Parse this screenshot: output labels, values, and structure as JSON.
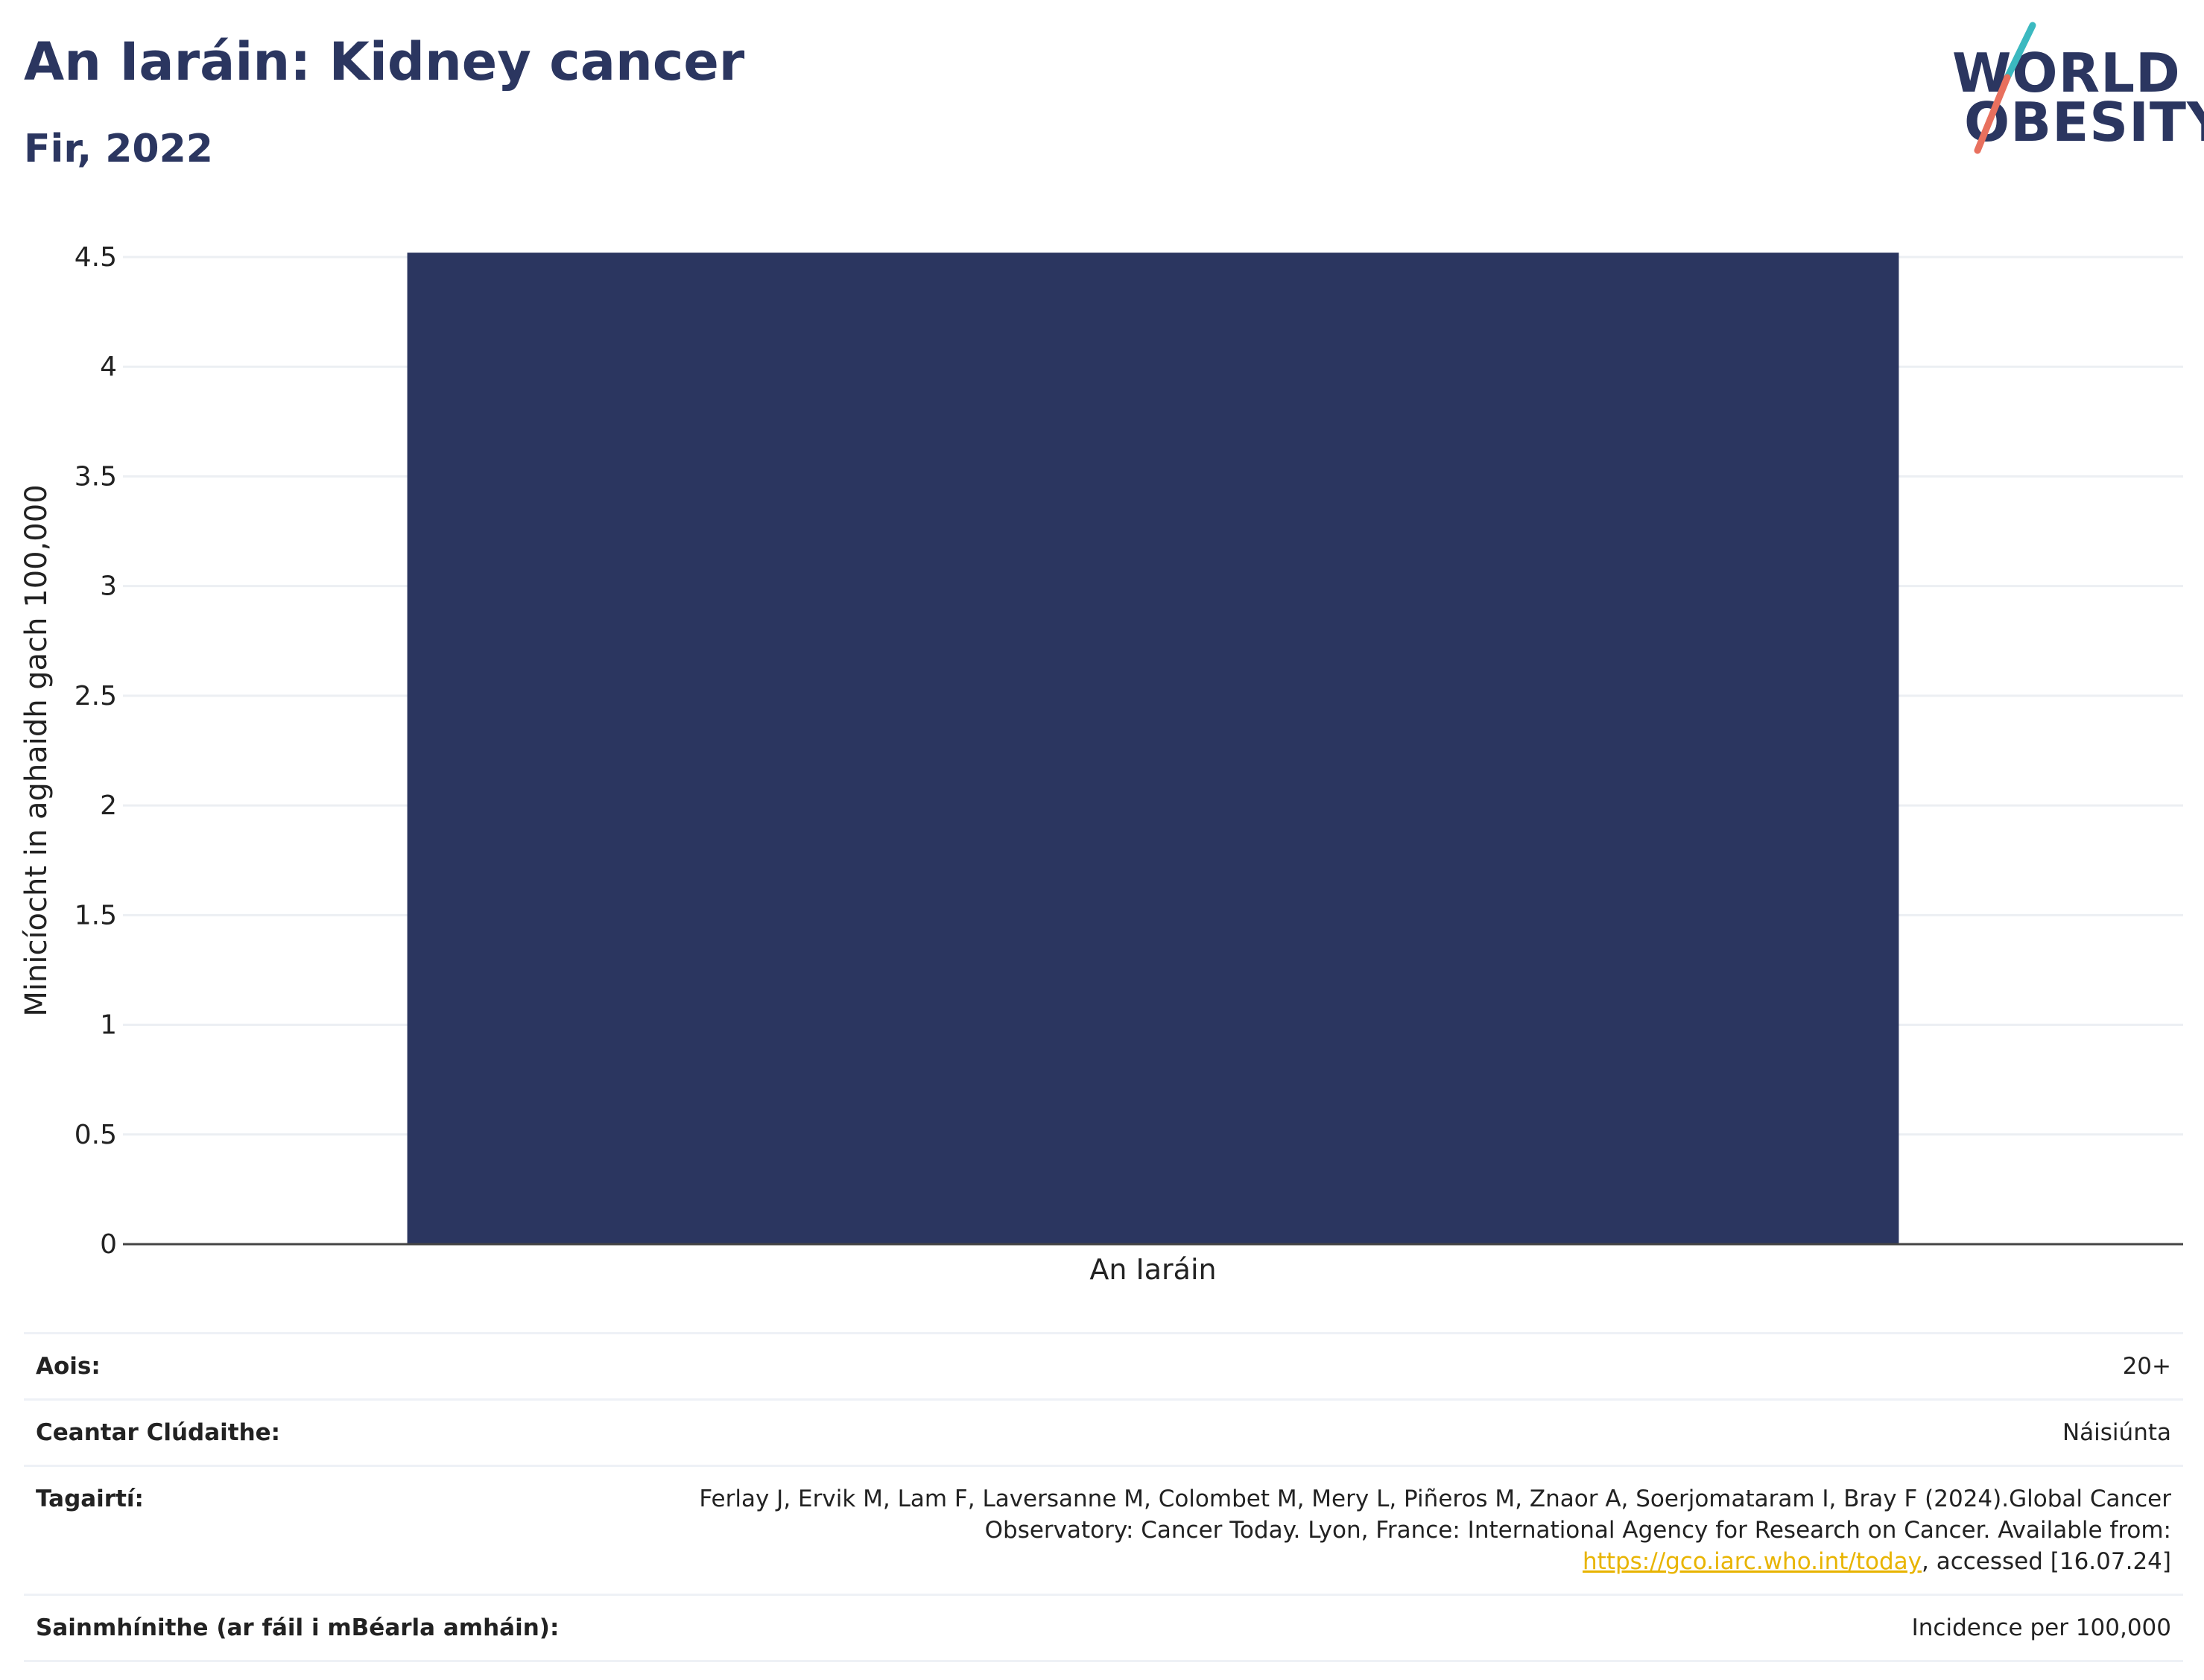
{
  "header": {
    "title": "An Iaráin: Kidney cancer",
    "subtitle": "Fir, 2022"
  },
  "logo": {
    "line1": "WORLD",
    "line2": "OBESITY",
    "colors": {
      "navy": "#2b3660",
      "teal": "#3bb9c0",
      "coral": "#e8705e"
    }
  },
  "chart_data": {
    "type": "bar",
    "categories": [
      "An Iaráin"
    ],
    "values": [
      4.52
    ],
    "ylabel": "Minicíocht in aghaidh gach 100,000",
    "xlabel": "",
    "ylim": [
      0,
      4.5
    ],
    "yticks": [
      "0",
      "0.5",
      "1",
      "1.5",
      "2",
      "2.5",
      "3",
      "3.5",
      "4",
      "4.5"
    ],
    "grid": true,
    "bar_color": "#2b3660"
  },
  "info": {
    "rows": [
      {
        "label": "Aois:",
        "value": "20+"
      },
      {
        "label": "Ceantar Clúdaithe:",
        "value": "Náisiúnta"
      },
      {
        "label": "Tagairtí:",
        "value_part1": "Ferlay J, Ervik M, Lam F, Laversanne M, Colombet M, Mery L, Piñeros M, Znaor A, Soerjomataram I, Bray F (2024).Global Cancer Observatory: Cancer Today. Lyon, France: International Agency for Research on Cancer. Available from: ",
        "link": "https://gco.iarc.who.int/today",
        "value_part2": ", accessed [16.07.24]"
      },
      {
        "label": "Sainmhínithe (ar fáil i mBéarla amháin):",
        "value": "Incidence per 100,000"
      }
    ]
  }
}
